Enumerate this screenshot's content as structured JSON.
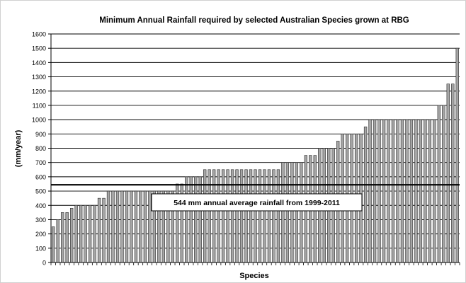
{
  "chart_data": {
    "type": "bar",
    "title": "Minimum Annual Rainfall required by selected Australian Species grown at RBG",
    "xlabel": "Species",
    "ylabel": "(mm/year)",
    "ylim": [
      0,
      1600
    ],
    "ytick_step": 100,
    "grid": true,
    "series": [
      {
        "values": [
          250,
          300,
          350,
          350,
          380,
          400,
          400,
          400,
          400,
          400,
          450,
          450,
          500,
          500,
          500,
          500,
          500,
          500,
          500,
          500,
          500,
          500,
          500,
          500,
          500,
          500,
          500,
          550,
          550,
          600,
          600,
          600,
          600,
          650,
          650,
          650,
          650,
          650,
          650,
          650,
          650,
          650,
          650,
          650,
          650,
          650,
          650,
          650,
          650,
          650,
          700,
          700,
          700,
          700,
          700,
          750,
          750,
          750,
          800,
          800,
          800,
          800,
          850,
          900,
          900,
          900,
          900,
          900,
          950,
          1000,
          1000,
          1000,
          1000,
          1000,
          1000,
          1000,
          1000,
          1000,
          1000,
          1000,
          1000,
          1000,
          1000,
          1000,
          1100,
          1100,
          1250,
          1250,
          1500
        ]
      }
    ],
    "reference_line": {
      "value": 544,
      "label": "544 mm annual average rainfall from 1999-2011"
    },
    "colors": {
      "bar_fill": "#a6a6a6",
      "bar_stroke": "#2b2b2b",
      "grid": "#000000",
      "reference_line": "#000000"
    }
  }
}
